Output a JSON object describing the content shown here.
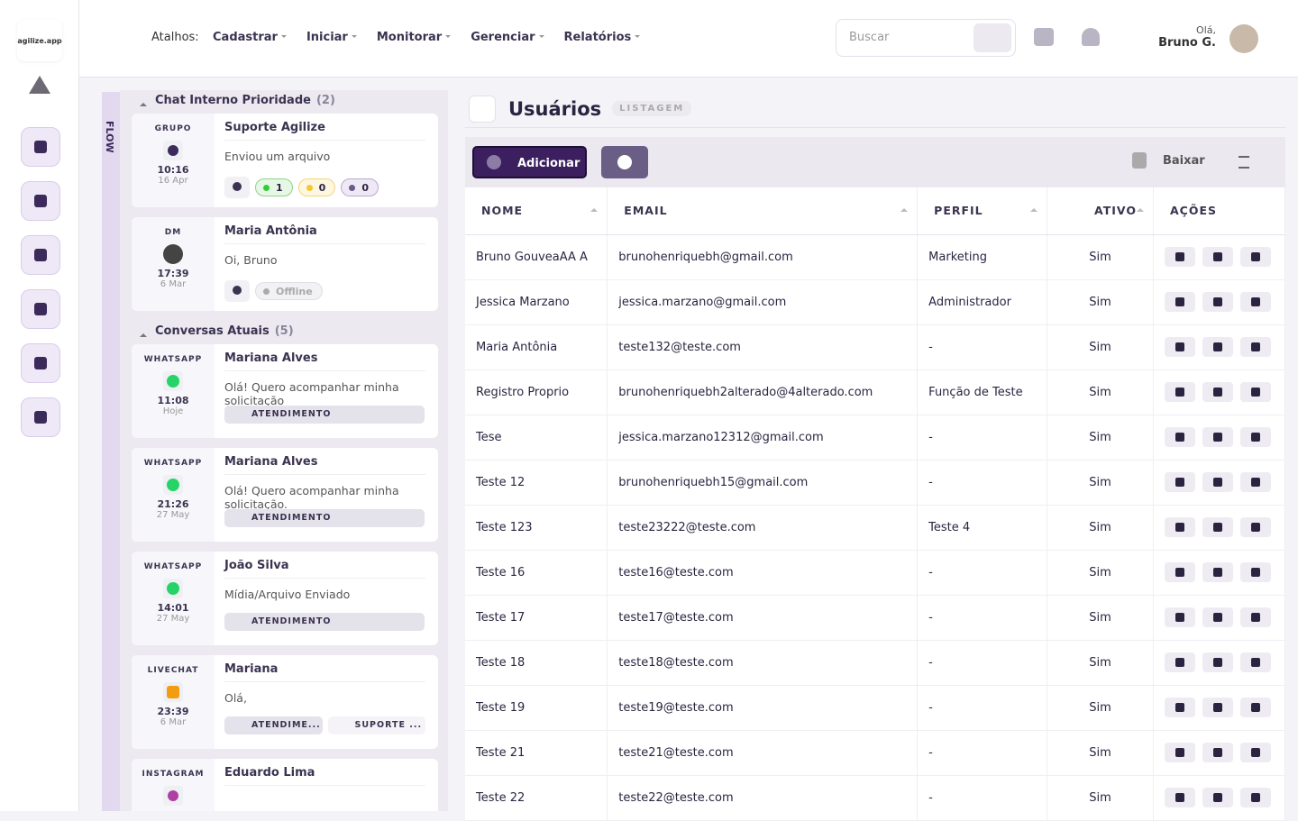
{
  "logo": "agilize.app",
  "topbar": {
    "shortcuts_label": "Atalhos:",
    "menu": [
      "Cadastrar",
      "Iniciar",
      "Monitorar",
      "Gerenciar",
      "Relatórios"
    ],
    "search_placeholder": "Buscar",
    "greeting": "Olá,",
    "user": "Bruno G."
  },
  "flow_tab": "FLOW",
  "chat": {
    "sections": [
      {
        "title": "Chat Interno Prioridade",
        "count": "(2)",
        "items": [
          {
            "channel": "GRUPO",
            "time": "10:16",
            "date": "16 Apr",
            "name": "Suporte Agilize",
            "message": "Enviou um arquivo",
            "counters": [
              "1",
              "0",
              "0"
            ]
          },
          {
            "channel": "DM",
            "time": "17:39",
            "date": "6 Mar",
            "name": "Maria Antônia",
            "message": "Oi, Bruno",
            "status": "Offline"
          }
        ]
      },
      {
        "title": "Conversas Atuais",
        "count": "(5)",
        "items": [
          {
            "channel": "WHATSAPP",
            "time": "11:08",
            "date": "Hoje",
            "name": "Mariana Alves",
            "message": "Olá! Quero acompanhar minha solicitação",
            "tags": [
              "ATENDIMENTO"
            ]
          },
          {
            "channel": "WHATSAPP",
            "time": "21:26",
            "date": "27 May",
            "name": "Mariana Alves",
            "message": "Olá! Quero acompanhar minha solicitação.",
            "tags": [
              "ATENDIMENTO"
            ]
          },
          {
            "channel": "WHATSAPP",
            "time": "14:01",
            "date": "27 May",
            "name": "João Silva",
            "message": "Mídia/Arquivo Enviado",
            "tags": [
              "ATENDIMENTO"
            ]
          },
          {
            "channel": "LIVECHAT",
            "time": "23:39",
            "date": "6 Mar",
            "name": "Mariana",
            "message": "Olá,",
            "tags": [
              "ATENDIME...",
              "SUPORTE ..."
            ]
          },
          {
            "channel": "INSTAGRAM",
            "name": "Eduardo Lima"
          }
        ]
      }
    ]
  },
  "page": {
    "title": "Usuários",
    "badge": "LISTAGEM",
    "add_button": "Adicionar",
    "download": "Baixar"
  },
  "table": {
    "columns": [
      "NOME",
      "EMAIL",
      "PERFIL",
      "ATIVO",
      "AÇÕES"
    ],
    "rows": [
      [
        "Bruno GouveaAA A",
        "brunohenriquebh@gmail.com",
        "Marketing",
        "Sim"
      ],
      [
        "Jessica Marzano",
        "jessica.marzano@gmail.com",
        "Administrador",
        "Sim"
      ],
      [
        "Maria Antônia",
        "teste132@teste.com",
        "-",
        "Sim"
      ],
      [
        "Registro Proprio",
        "brunohenriquebh2alterado@4alterado.com",
        "Função de Teste",
        "Sim"
      ],
      [
        "Tese",
        "jessica.marzano12312@gmail.com",
        "-",
        "Sim"
      ],
      [
        "Teste 12",
        "brunohenriquebh15@gmail.com",
        "-",
        "Sim"
      ],
      [
        "Teste 123",
        "teste23222@teste.com",
        "Teste 4",
        "Sim"
      ],
      [
        "Teste 16",
        "teste16@teste.com",
        "-",
        "Sim"
      ],
      [
        "Teste 17",
        "teste17@teste.com",
        "-",
        "Sim"
      ],
      [
        "Teste 18",
        "teste18@teste.com",
        "-",
        "Sim"
      ],
      [
        "Teste 19",
        "teste19@teste.com",
        "-",
        "Sim"
      ],
      [
        "Teste 21",
        "teste21@teste.com",
        "-",
        "Sim"
      ],
      [
        "Teste 22",
        "teste22@teste.com",
        "-",
        "Sim"
      ]
    ]
  }
}
